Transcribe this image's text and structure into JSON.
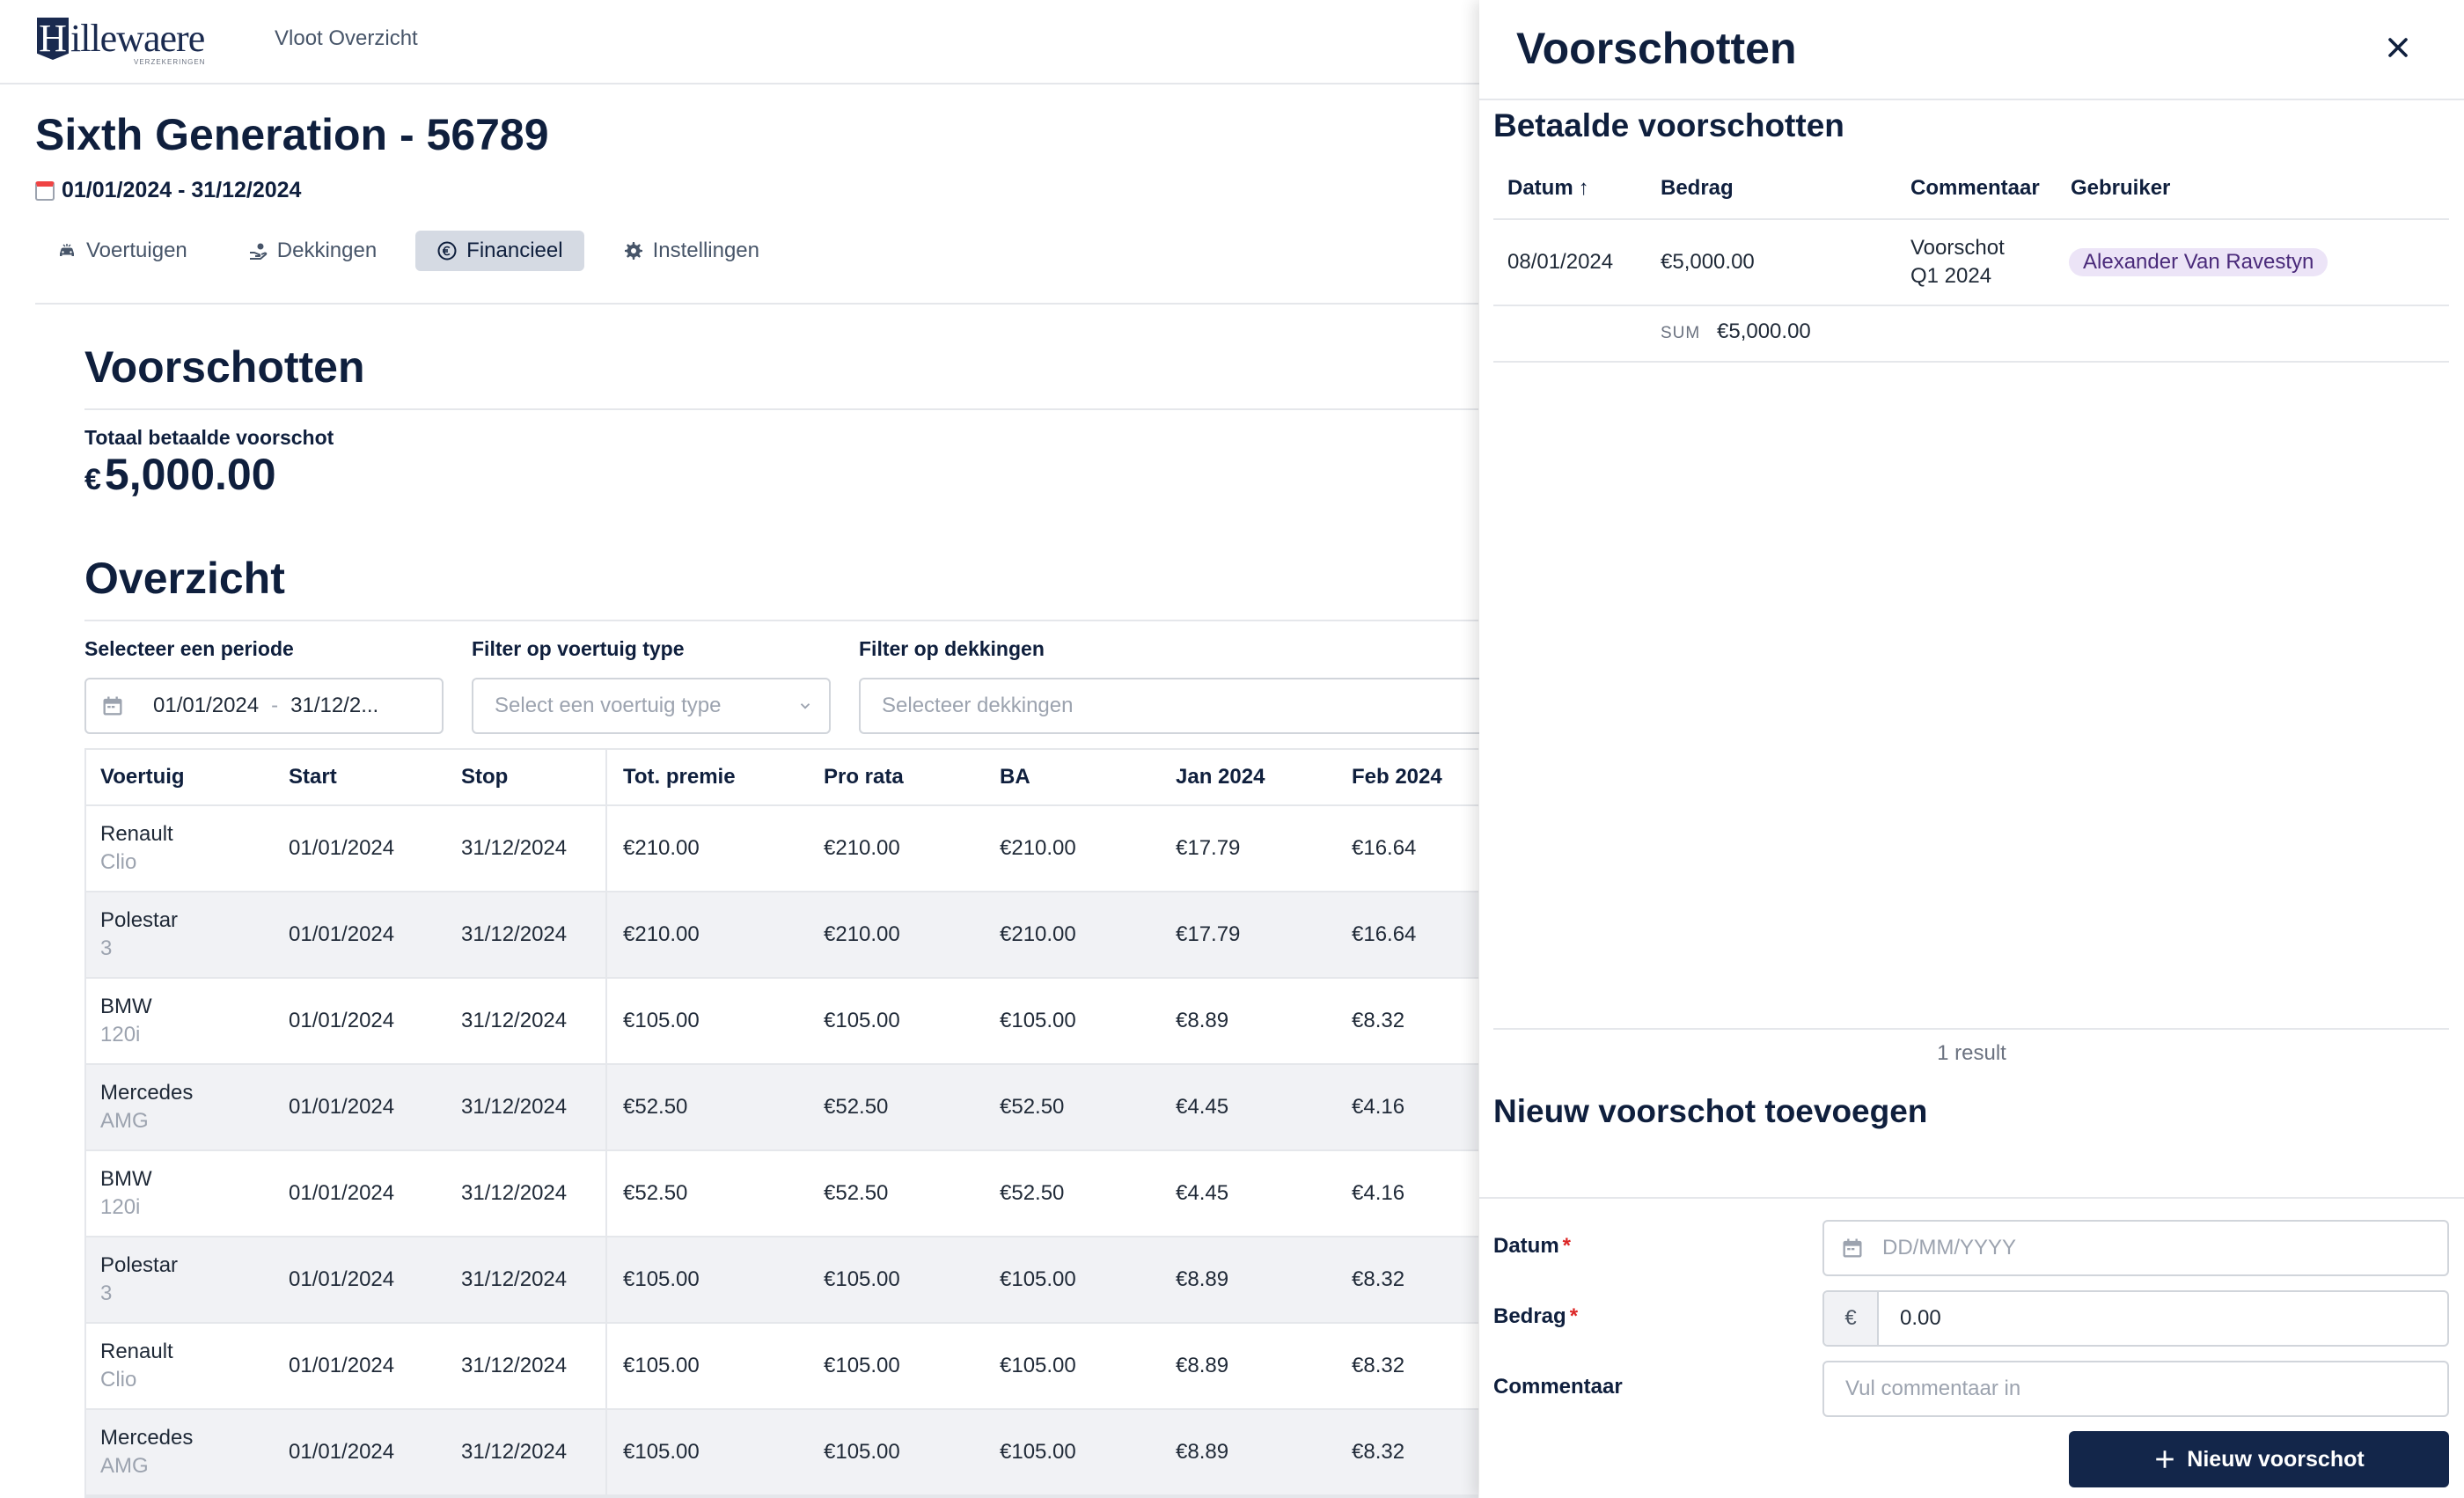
{
  "header": {
    "logo_text": "Hillewaere",
    "logo_sub": "VERZEKERINGEN",
    "nav_link": "Vloot Overzicht"
  },
  "page": {
    "title": "Sixth Generation - 56789",
    "period": "01/01/2024 - 31/12/2024"
  },
  "tabs": [
    {
      "label": "Voertuigen",
      "icon": "car-icon"
    },
    {
      "label": "Dekkingen",
      "icon": "hand-coins-icon"
    },
    {
      "label": "Financieel",
      "icon": "euro-circle-icon",
      "active": true
    },
    {
      "label": "Instellingen",
      "icon": "gear-icon"
    }
  ],
  "voorschotten": {
    "heading": "Voorschotten",
    "total_label": "Totaal betaalde voorschot",
    "total_currency": "€",
    "total_value": "5,000.00"
  },
  "overzicht": {
    "heading": "Overzicht",
    "period_label": "Selecteer een periode",
    "period_start": "01/01/2024",
    "period_sep": "-",
    "period_end": "31/12/2...",
    "vehicle_type_label": "Filter op voertuig type",
    "vehicle_type_placeholder": "Select een voertuig type",
    "coverage_label": "Filter op dekkingen",
    "coverage_placeholder": "Selecteer dekkingen"
  },
  "table": {
    "columns": [
      "Voertuig",
      "Start",
      "Stop",
      "Tot. premie",
      "Pro rata",
      "BA",
      "Jan 2024",
      "Feb 2024"
    ],
    "rows": [
      {
        "make": "Renault",
        "model": "Clio",
        "start": "01/01/2024",
        "stop": "31/12/2024",
        "premie": "€210.00",
        "prorata": "€210.00",
        "ba": "€210.00",
        "jan": "€17.79",
        "feb": "€16.64"
      },
      {
        "make": "Polestar",
        "model": "3",
        "start": "01/01/2024",
        "stop": "31/12/2024",
        "premie": "€210.00",
        "prorata": "€210.00",
        "ba": "€210.00",
        "jan": "€17.79",
        "feb": "€16.64"
      },
      {
        "make": "BMW",
        "model": "120i",
        "start": "01/01/2024",
        "stop": "31/12/2024",
        "premie": "€105.00",
        "prorata": "€105.00",
        "ba": "€105.00",
        "jan": "€8.89",
        "feb": "€8.32"
      },
      {
        "make": "Mercedes",
        "model": "AMG",
        "start": "01/01/2024",
        "stop": "31/12/2024",
        "premie": "€52.50",
        "prorata": "€52.50",
        "ba": "€52.50",
        "jan": "€4.45",
        "feb": "€4.16"
      },
      {
        "make": "BMW",
        "model": "120i",
        "start": "01/01/2024",
        "stop": "31/12/2024",
        "premie": "€52.50",
        "prorata": "€52.50",
        "ba": "€52.50",
        "jan": "€4.45",
        "feb": "€4.16"
      },
      {
        "make": "Polestar",
        "model": "3",
        "start": "01/01/2024",
        "stop": "31/12/2024",
        "premie": "€105.00",
        "prorata": "€105.00",
        "ba": "€105.00",
        "jan": "€8.89",
        "feb": "€8.32"
      },
      {
        "make": "Renault",
        "model": "Clio",
        "start": "01/01/2024",
        "stop": "31/12/2024",
        "premie": "€105.00",
        "prorata": "€105.00",
        "ba": "€105.00",
        "jan": "€8.89",
        "feb": "€8.32"
      },
      {
        "make": "Mercedes",
        "model": "AMG",
        "start": "01/01/2024",
        "stop": "31/12/2024",
        "premie": "€105.00",
        "prorata": "€105.00",
        "ba": "€105.00",
        "jan": "€8.89",
        "feb": "€8.32"
      }
    ]
  },
  "drawer": {
    "title": "Voorschotten",
    "paid_heading": "Betaalde voorschotten",
    "columns": [
      "Datum",
      "Bedrag",
      "Commentaar",
      "Gebruiker"
    ],
    "sort_indicator": "↑",
    "payment": {
      "date": "08/01/2024",
      "amount": "€5,000.00",
      "comment_line1": "Voorschot",
      "comment_line2": "Q1 2024",
      "user": "Alexander Van Ravestyn"
    },
    "sum_label": "SUM",
    "sum_value": "€5,000.00",
    "result_count": "1 result",
    "new_heading": "Nieuw voorschot toevoegen",
    "form": {
      "date_label": "Datum",
      "date_placeholder": "DD/MM/YYYY",
      "amount_label": "Bedrag",
      "amount_currency": "€",
      "amount_value": "0.00",
      "comment_label": "Commentaar",
      "comment_placeholder": "Vul commentaar in",
      "required_mark": "*"
    },
    "submit_label": "Nieuw voorschot"
  },
  "colors": {
    "navy": "#0f1f3d",
    "button": "#13264a",
    "tab_active_bg": "#d5dae3",
    "badge_bg": "#ece4f7",
    "required": "#dc2626"
  }
}
